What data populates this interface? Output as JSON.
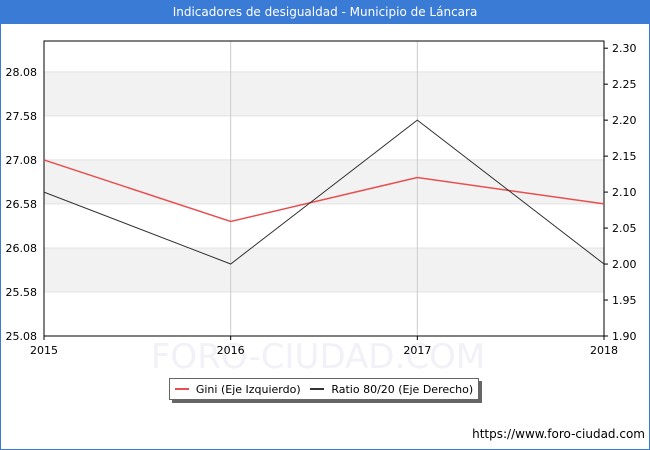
{
  "page": {
    "title": "Indicadores de desigualdad - Municipio de Láncara",
    "watermark": "FORO-CIUDAD.COM",
    "footer_url": "https://www.foro-ciudad.com"
  },
  "colors": {
    "title_bg": "#3a7bd5",
    "gini": "#e85050",
    "ratio": "#333333",
    "band": "#f2f2f2",
    "grid": "#cccccc"
  },
  "chart_data": {
    "type": "line",
    "title": "Indicadores de desigualdad - Municipio de Láncara",
    "x": [
      2015,
      2016,
      2017,
      2018
    ],
    "x_tick_labels": [
      "2015",
      "2016",
      "2017",
      "2018"
    ],
    "y_left_ticks": [
      "25.08",
      "25.58",
      "26.08",
      "26.58",
      "27.08",
      "27.58",
      "28.08"
    ],
    "y_left_range": [
      25.08,
      28.43
    ],
    "y_right_ticks": [
      "1.90",
      "1.95",
      "2.00",
      "2.05",
      "2.10",
      "2.15",
      "2.20",
      "2.25",
      "2.30"
    ],
    "y_right_range": [
      1.9,
      2.31
    ],
    "grid": true,
    "legend_position": "bottom",
    "series": [
      {
        "name": "Gini (Eje Izquierdo)",
        "axis": "left",
        "values": [
          27.08,
          26.38,
          26.88,
          26.58
        ]
      },
      {
        "name": "Ratio 80/20 (Eje Derecho)",
        "axis": "right",
        "values": [
          2.1,
          2.0,
          2.2,
          2.0
        ]
      }
    ]
  }
}
